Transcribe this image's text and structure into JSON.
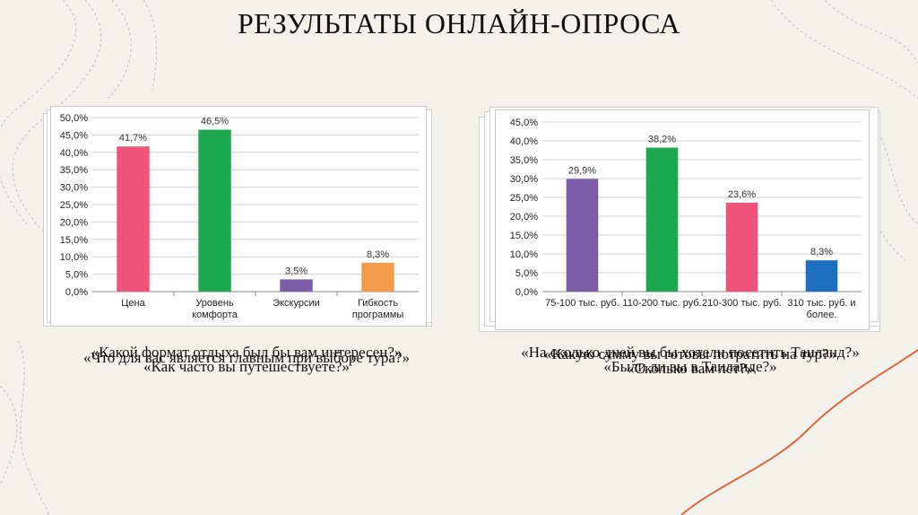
{
  "title": "РЕЗУЛЬТАТЫ ОНЛАЙН-ОПРОСА",
  "colors": {
    "background": "#f3f1ec",
    "accent_line": "#d9693a",
    "pink": "#f0537a",
    "green": "#1ca84e",
    "purple": "#7b5ca6",
    "orange": "#f49b4a",
    "blue": "#1f6fc1"
  },
  "captions_left": [
    "«Какой формат отдыха был бы вам интересен?»",
    "«Что для вас является главным при выборе тура?»",
    "«Как часто вы путешествуете?»"
  ],
  "captions_right": [
    "«На сколько дней вы бы хотели посетить Таиланд?»",
    "«Какую сумму вы готовы потратить на тур?»",
    "«Были ли вы в Таиланде?»",
    "«Сколько вам лет?»"
  ],
  "chart_data": [
    {
      "type": "bar",
      "categories": [
        "Цена",
        "Уровень комфорта",
        "Экскурсии",
        "Гибкость программы"
      ],
      "category_lines": [
        [
          "Цена"
        ],
        [
          "Уровень",
          "комфорта"
        ],
        [
          "Экскурсии"
        ],
        [
          "Гибкость",
          "программы"
        ]
      ],
      "values": [
        41.7,
        46.5,
        3.5,
        8.3
      ],
      "value_labels": [
        "41,7%",
        "46,5%",
        "3,5%",
        "8,3%"
      ],
      "bar_colors": [
        "#f0537a",
        "#1ca84e",
        "#7b5ca6",
        "#f49b4a"
      ],
      "ylim": [
        0,
        50
      ],
      "yticks": [
        "0,0%",
        "5,0%",
        "10,0%",
        "15,0%",
        "20,0%",
        "25,0%",
        "30,0%",
        "35,0%",
        "40,0%",
        "45,0%",
        "50,0%"
      ],
      "grid": true
    },
    {
      "type": "bar",
      "categories": [
        "75-100 тыс. руб.",
        "110-200 тыс. руб.",
        "210-300 тыс. руб.",
        "310 тыс. руб. и более."
      ],
      "category_lines": [
        [
          "75-100 тыс. руб."
        ],
        [
          "110-200 тыс. руб."
        ],
        [
          "210-300 тыс. руб."
        ],
        [
          "310 тыс. руб. и",
          "более."
        ]
      ],
      "values": [
        29.9,
        38.2,
        23.6,
        8.3
      ],
      "value_labels": [
        "29,9%",
        "38,2%",
        "23,6%",
        "8,3%"
      ],
      "bar_colors": [
        "#7b5ca6",
        "#1ca84e",
        "#f0537a",
        "#1f6fc1"
      ],
      "ylim": [
        0,
        45
      ],
      "yticks": [
        "0,0%",
        "5,0%",
        "10,0%",
        "15,0%",
        "20,0%",
        "25,0%",
        "30,0%",
        "35,0%",
        "40,0%",
        "45,0%"
      ],
      "grid": true
    }
  ]
}
